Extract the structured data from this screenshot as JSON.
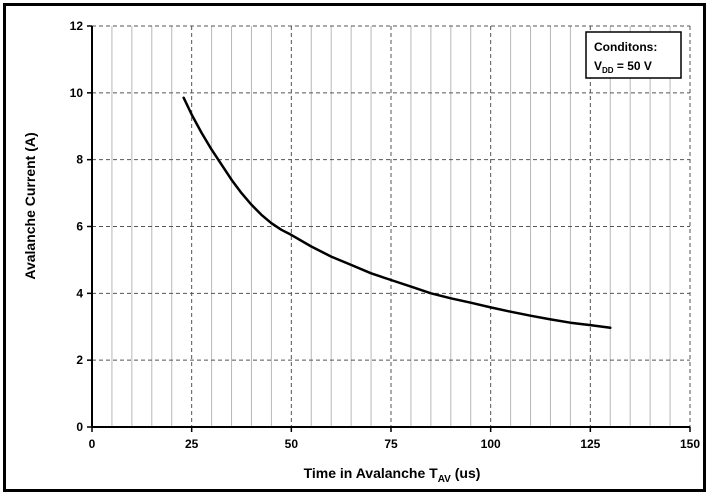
{
  "chart_data": {
    "type": "line",
    "xlabel": {
      "main": "Time in Avalanche T",
      "sub": "AV",
      "suffix": " (us)"
    },
    "ylabel": "Avalanche Current (A)",
    "xlim": [
      0,
      150
    ],
    "ylim": [
      0,
      12
    ],
    "x_ticks": [
      0,
      25,
      50,
      75,
      100,
      125,
      150
    ],
    "y_ticks": [
      0,
      2,
      4,
      6,
      8,
      10,
      12
    ],
    "grid": {
      "major": true,
      "minor_x": true,
      "minor_x_step": 5
    },
    "legend": {
      "placement": "top-right",
      "line1": "Conditons:",
      "line2": {
        "main": "V",
        "sub": "DD",
        "suffix": " = 50 V"
      }
    },
    "series": [
      {
        "color": "#000000",
        "points": [
          [
            23,
            9.85
          ],
          [
            25,
            9.35
          ],
          [
            27.5,
            8.8
          ],
          [
            30,
            8.3
          ],
          [
            32.5,
            7.85
          ],
          [
            35,
            7.4
          ],
          [
            37.5,
            7.0
          ],
          [
            40,
            6.65
          ],
          [
            42.5,
            6.35
          ],
          [
            45,
            6.1
          ],
          [
            47.5,
            5.9
          ],
          [
            50,
            5.75
          ],
          [
            55,
            5.4
          ],
          [
            60,
            5.1
          ],
          [
            65,
            4.85
          ],
          [
            70,
            4.6
          ],
          [
            75,
            4.4
          ],
          [
            80,
            4.2
          ],
          [
            85,
            4.0
          ],
          [
            90,
            3.85
          ],
          [
            95,
            3.72
          ],
          [
            100,
            3.58
          ],
          [
            105,
            3.45
          ],
          [
            110,
            3.33
          ],
          [
            115,
            3.22
          ],
          [
            120,
            3.12
          ],
          [
            125,
            3.05
          ],
          [
            130,
            2.97
          ]
        ]
      }
    ]
  }
}
